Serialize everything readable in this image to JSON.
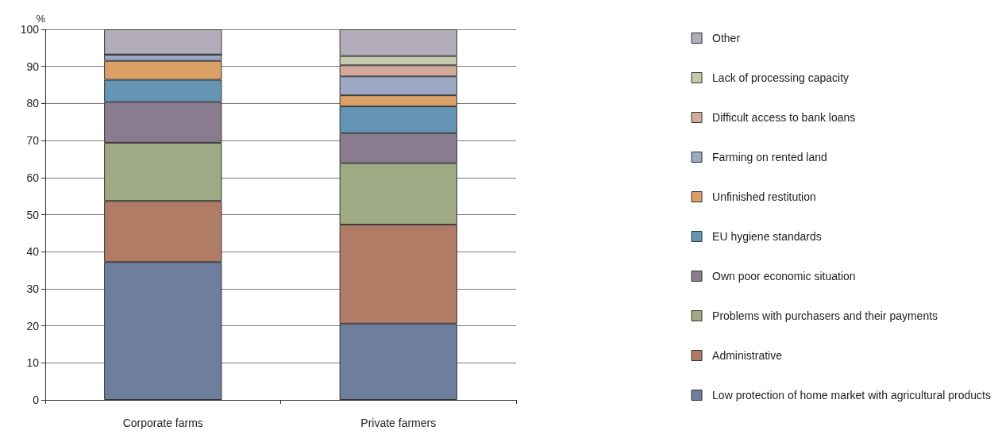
{
  "chart_data": {
    "type": "bar",
    "stacked": true,
    "ylabel": "%",
    "categories": [
      "Corporate farms",
      "Private farmers"
    ],
    "series": [
      {
        "name": "Low protection of home market with agricultural products",
        "color": "#6d7f9c",
        "values": [
          37.2,
          20.6
        ]
      },
      {
        "name": "Administrative",
        "color": "#b07c66",
        "values": [
          16.5,
          26.7
        ]
      },
      {
        "name": "Problems with purchasers and their payments",
        "color": "#9fa984",
        "values": [
          15.7,
          16.6
        ]
      },
      {
        "name": "Own poor economic situation",
        "color": "#8a7c8e",
        "values": [
          11.0,
          8.1
        ]
      },
      {
        "name": "EU hygiene standards",
        "color": "#6595b4",
        "values": [
          6.0,
          7.2
        ]
      },
      {
        "name": "Unfinished restitution",
        "color": "#dba065",
        "values": [
          5.1,
          3.0
        ]
      },
      {
        "name": "Farming on rented land",
        "color": "#9ca8c4",
        "values": [
          1.7,
          5.1
        ]
      },
      {
        "name": "Difficult access to bank loans",
        "color": "#d4ab9a",
        "values": [
          0,
          3.0
        ]
      },
      {
        "name": "Lack of processing capacity",
        "color": "#c3caad",
        "values": [
          0,
          2.5
        ]
      },
      {
        "name": "Other",
        "color": "#b3adbb",
        "values": [
          6.8,
          7.2
        ]
      }
    ],
    "ylim": [
      0,
      100
    ],
    "yticks": [
      0,
      10,
      20,
      30,
      40,
      50,
      60,
      70,
      80,
      90,
      100
    ],
    "grid": "y",
    "legend": "right"
  }
}
